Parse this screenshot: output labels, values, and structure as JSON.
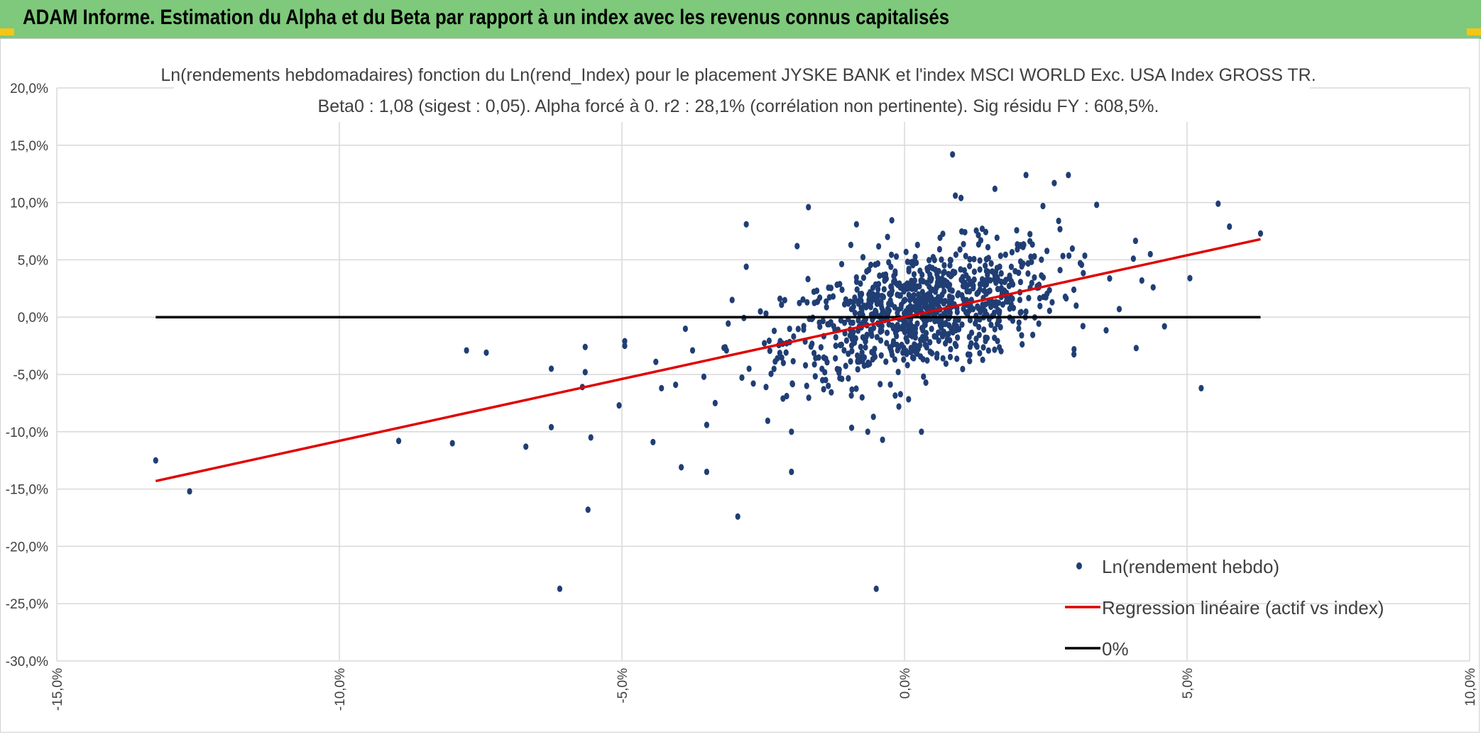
{
  "header": {
    "title": "ADAM Informe. Estimation du Alpha et du Beta par rapport à un index avec les revenus connus capitalisés"
  },
  "colors": {
    "header_bg": "#7ec97b",
    "points": "#203e74",
    "regression": "#e00000",
    "zero_line": "#000000",
    "grid": "#d9d9d9",
    "accent_marks": "#f5c518"
  },
  "chart_data": {
    "type": "scatter",
    "title_line1": "Ln(rendements hebdomadaires) fonction du Ln(rend_Index) pour le placement JYSKE BANK et l'index MSCI WORLD Exc. USA Index GROSS TR.",
    "title_line2": "Beta0 : 1,08 (sigest : 0,05). Alpha forcé à 0. r2 : 28,1% (corrélation non pertinente). Sig résidu FY : 608,5%.",
    "xlim": [
      -0.15,
      0.1
    ],
    "ylim": [
      -0.3,
      0.2
    ],
    "x_ticks": [
      "-15,0%",
      "-10,0%",
      "-5,0%",
      "0,0%",
      "5,0%",
      "10,0%"
    ],
    "y_ticks": [
      "20,0%",
      "15,0%",
      "10,0%",
      "5,0%",
      "0,0%",
      "-5,0%",
      "-10,0%",
      "-15,0%",
      "-20,0%",
      "-25,0%",
      "-30,0%"
    ],
    "grid": true,
    "legend_position": "bottom-right",
    "series": [
      {
        "name": "Ln(rendement hebdo)",
        "kind": "scatter",
        "points": [
          [
            -0.1325,
            -0.125
          ],
          [
            -0.1265,
            -0.152
          ],
          [
            -0.0895,
            -0.108
          ],
          [
            -0.08,
            -0.11
          ],
          [
            -0.0775,
            -0.029
          ],
          [
            -0.074,
            -0.031
          ],
          [
            -0.067,
            -0.113
          ],
          [
            -0.0625,
            -0.045
          ],
          [
            -0.0625,
            -0.096
          ],
          [
            -0.061,
            -0.237
          ],
          [
            -0.0565,
            -0.026
          ],
          [
            -0.0565,
            -0.048
          ],
          [
            -0.057,
            -0.061
          ],
          [
            -0.056,
            -0.168
          ],
          [
            -0.0555,
            -0.105
          ],
          [
            -0.0505,
            -0.077
          ],
          [
            -0.0495,
            -0.021
          ],
          [
            -0.0495,
            -0.025
          ],
          [
            -0.0445,
            -0.109
          ],
          [
            -0.044,
            -0.039
          ],
          [
            -0.043,
            -0.062
          ],
          [
            -0.0405,
            -0.059
          ],
          [
            -0.0395,
            -0.131
          ],
          [
            -0.0375,
            -0.029
          ],
          [
            -0.0355,
            -0.052
          ],
          [
            -0.035,
            -0.094
          ],
          [
            -0.035,
            -0.135
          ],
          [
            -0.0335,
            -0.075
          ],
          [
            -0.0315,
            -0.029
          ],
          [
            -0.0305,
            0.015
          ],
          [
            -0.0295,
            -0.174
          ],
          [
            -0.028,
            0.081
          ],
          [
            -0.028,
            0.044
          ],
          [
            -0.0275,
            -0.045
          ],
          [
            -0.0255,
            0.005
          ],
          [
            -0.0245,
            -0.061
          ],
          [
            -0.0225,
            -0.036
          ],
          [
            -0.0215,
            -0.071
          ],
          [
            -0.02,
            -0.1
          ],
          [
            -0.02,
            -0.135
          ],
          [
            -0.019,
            0.062
          ],
          [
            -0.017,
            0.096
          ],
          [
            -0.015,
            0.017
          ],
          [
            -0.0145,
            -0.055
          ],
          [
            -0.0095,
            0.063
          ],
          [
            -0.0085,
            0.081
          ],
          [
            -0.0075,
            -0.07
          ],
          [
            -0.0065,
            -0.1
          ],
          [
            -0.0055,
            -0.087
          ],
          [
            -0.005,
            -0.237
          ],
          [
            -0.003,
            0.07
          ],
          [
            -0.001,
            -0.078
          ],
          [
            0.003,
            -0.1
          ],
          [
            0.0085,
            0.142
          ],
          [
            0.009,
            0.106
          ],
          [
            0.01,
            0.104
          ],
          [
            0.0135,
            0.067
          ],
          [
            0.016,
            0.112
          ],
          [
            0.0215,
            0.124
          ],
          [
            0.0245,
            0.097
          ],
          [
            0.0265,
            0.117
          ],
          [
            0.029,
            0.124
          ],
          [
            0.034,
            0.098
          ],
          [
            0.038,
            0.007
          ],
          [
            0.0405,
            0.051
          ],
          [
            0.041,
            -0.027
          ],
          [
            0.042,
            0.032
          ],
          [
            0.0435,
            0.055
          ],
          [
            0.044,
            0.026
          ],
          [
            0.046,
            -0.008
          ],
          [
            0.0505,
            0.034
          ],
          [
            0.0525,
            -0.062
          ],
          [
            0.0555,
            0.099
          ],
          [
            0.0575,
            0.079
          ],
          [
            0.063,
            0.073
          ],
          [
            0.03,
            -0.028
          ]
        ],
        "cluster": {
          "x_center": 0.003,
          "y_center": 0.005,
          "count": 900
        }
      },
      {
        "name": "Regression linéaire (actif vs index)",
        "kind": "line",
        "points": [
          [
            -0.1325,
            -0.143
          ],
          [
            0.063,
            0.068
          ]
        ]
      },
      {
        "name": "0%",
        "kind": "line",
        "points": [
          [
            -0.1325,
            0.0
          ],
          [
            0.063,
            0.0
          ]
        ]
      }
    ]
  }
}
